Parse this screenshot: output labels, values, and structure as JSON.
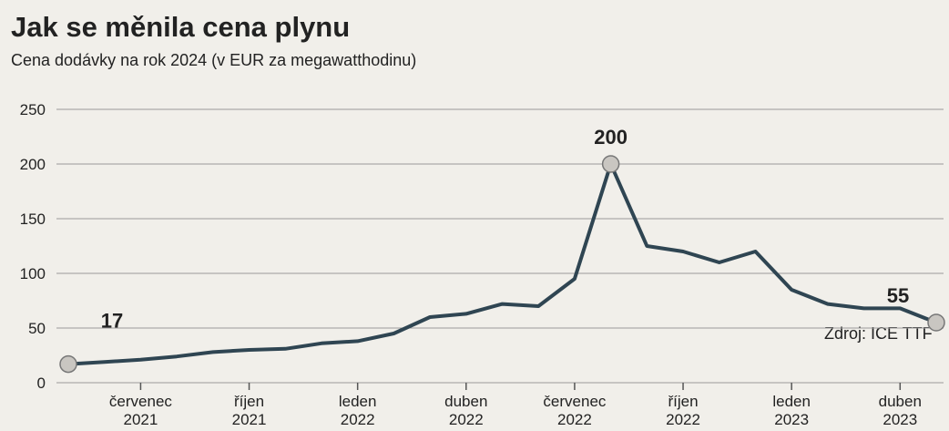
{
  "chart_data": {
    "type": "line",
    "title": "Jak se měnila cena plynu",
    "subtitle": "Cena dodávky na rok 2024 (v EUR za megawatthodinu)",
    "source": "Zdroj: ICE TTF",
    "x": [
      "2021-05",
      "2021-06",
      "2021-07",
      "2021-08",
      "2021-09",
      "2021-10",
      "2021-11",
      "2021-12",
      "2022-01",
      "2022-02",
      "2022-03",
      "2022-04",
      "2022-05",
      "2022-06",
      "2022-07",
      "2022-08",
      "2022-09",
      "2022-10",
      "2022-11",
      "2022-12",
      "2023-01",
      "2023-02",
      "2023-03",
      "2023-04",
      "2023-05"
    ],
    "series": [
      {
        "name": "Cena",
        "color": "#2f4552",
        "values": [
          17,
          19,
          21,
          24,
          28,
          30,
          31,
          36,
          38,
          45,
          60,
          63,
          72,
          70,
          95,
          200,
          125,
          120,
          110,
          120,
          85,
          72,
          68,
          68,
          55
        ]
      }
    ],
    "labeled_points": [
      0,
      15,
      24
    ],
    "xlim": [
      "2021-05",
      "2023-05"
    ],
    "xticks": [
      {
        "value": "2021-07",
        "label": "červenec 2021"
      },
      {
        "value": "2021-10",
        "label": "říjen 2021"
      },
      {
        "value": "2022-01",
        "label": "leden 2022"
      },
      {
        "value": "2022-04",
        "label": "duben 2022"
      },
      {
        "value": "2022-07",
        "label": "červenec 2022"
      },
      {
        "value": "2022-10",
        "label": "říjen 2022"
      },
      {
        "value": "2023-01",
        "label": "leden 2023"
      },
      {
        "value": "2023-04",
        "label": "duben 2023"
      }
    ],
    "ylim": [
      0,
      250
    ],
    "yticks": [
      0,
      50,
      100,
      150,
      200,
      250
    ],
    "grid": true
  }
}
